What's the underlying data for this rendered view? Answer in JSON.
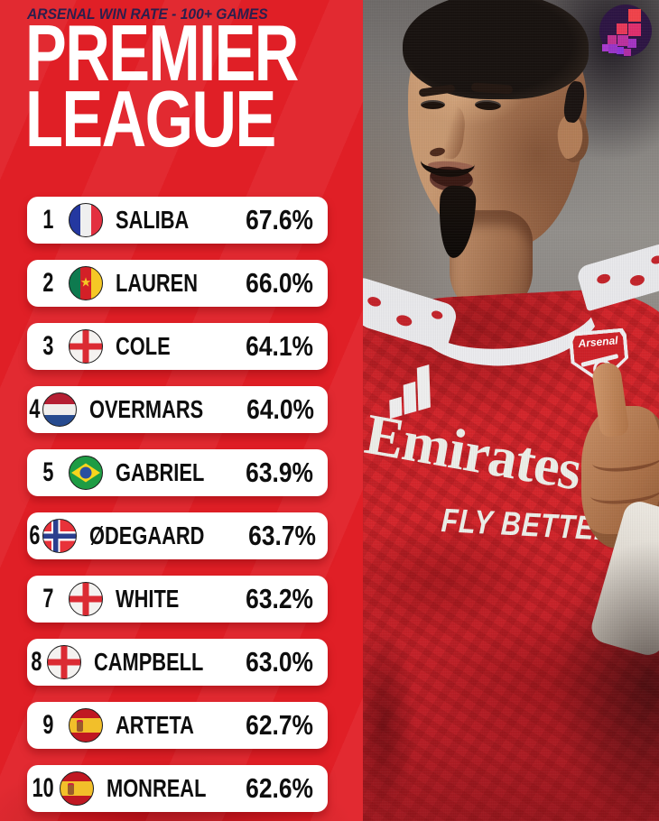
{
  "header": {
    "eyebrow": "ARSENAL WIN RATE - 100+ GAMES",
    "title_line1": "PREMIER",
    "title_line2": "LEAGUE"
  },
  "table": {
    "rows": [
      {
        "rank": "1",
        "flag": "france",
        "player": "SALIBA",
        "win_rate": "67.6%"
      },
      {
        "rank": "2",
        "flag": "cameroon",
        "player": "LAUREN",
        "win_rate": "66.0%"
      },
      {
        "rank": "3",
        "flag": "england",
        "player": "COLE",
        "win_rate": "64.1%"
      },
      {
        "rank": "4",
        "flag": "netherlands",
        "player": "OVERMARS",
        "win_rate": "64.0%"
      },
      {
        "rank": "5",
        "flag": "brazil",
        "player": "GABRIEL",
        "win_rate": "63.9%"
      },
      {
        "rank": "6",
        "flag": "norway",
        "player": "ØDEGAARD",
        "win_rate": "63.7%"
      },
      {
        "rank": "7",
        "flag": "england",
        "player": "WHITE",
        "win_rate": "63.2%"
      },
      {
        "rank": "8",
        "flag": "england",
        "player": "CAMPBELL",
        "win_rate": "63.0%"
      },
      {
        "rank": "9",
        "flag": "spain",
        "player": "ARTETA",
        "win_rate": "62.7%"
      },
      {
        "rank": "10",
        "flag": "spain",
        "player": "MONREAL",
        "win_rate": "62.6%"
      }
    ]
  },
  "photo": {
    "jersey_sponsor": "Emirates",
    "jersey_slogan": "FLY BETTER",
    "crest_text": "Arsenal"
  },
  "icons": {
    "brand_badge": "pixel-stairs-logo",
    "flags": [
      "france",
      "cameroon",
      "england",
      "netherlands",
      "brazil",
      "norway",
      "spain"
    ]
  },
  "colors": {
    "background_red": "#E01F26",
    "row_background": "#FFFFFF",
    "row_text": "#0E0E0E",
    "eyebrow_navy": "#2A1F4D",
    "title_white": "#FFFFFF",
    "badge_circle": "#2E1644",
    "badge_pixels": [
      "#F2434B",
      "#E02F6E",
      "#BC32A0",
      "#9936C9"
    ],
    "jersey_red": "#D5262C"
  },
  "chart_data": {
    "type": "table",
    "title": "PREMIER LEAGUE",
    "subtitle": "ARSENAL WIN RATE - 100+ GAMES",
    "columns": [
      "rank",
      "nationality",
      "player",
      "win_rate_pct"
    ],
    "rows": [
      [
        1,
        "France",
        "SALIBA",
        67.6
      ],
      [
        2,
        "Cameroon",
        "LAUREN",
        66.0
      ],
      [
        3,
        "England",
        "COLE",
        64.1
      ],
      [
        4,
        "Netherlands",
        "OVERMARS",
        64.0
      ],
      [
        5,
        "Brazil",
        "GABRIEL",
        63.9
      ],
      [
        6,
        "Norway",
        "ØDEGAARD",
        63.7
      ],
      [
        7,
        "England",
        "WHITE",
        63.2
      ],
      [
        8,
        "England",
        "CAMPBELL",
        63.0
      ],
      [
        9,
        "Spain",
        "ARTETA",
        62.7
      ],
      [
        10,
        "Spain",
        "MONREAL",
        62.6
      ]
    ]
  }
}
